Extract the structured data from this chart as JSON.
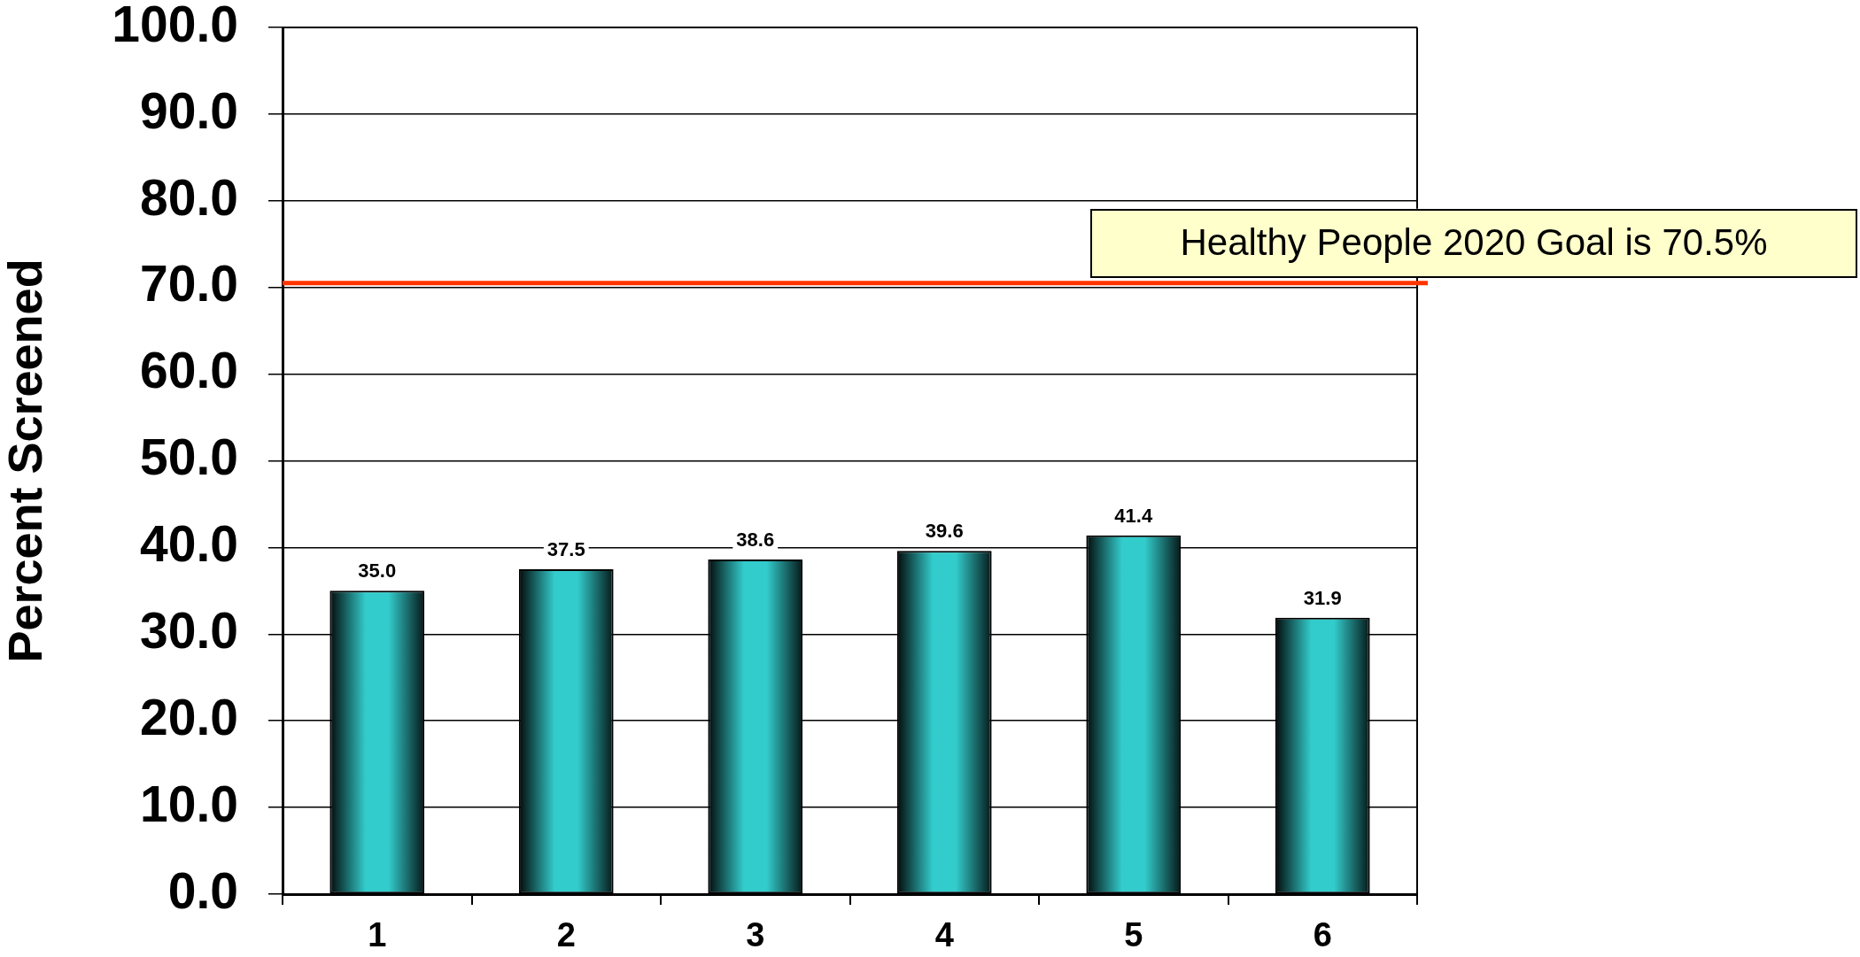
{
  "chart_data": {
    "type": "bar",
    "ylabel": "Percent Screened",
    "categories": [
      "1",
      "2",
      "3",
      "4",
      "5",
      "6"
    ],
    "values": [
      35.0,
      37.5,
      38.6,
      39.6,
      41.4,
      31.9
    ],
    "value_labels": [
      "35.0",
      "37.5",
      "38.6",
      "39.6",
      "41.4",
      "31.9"
    ],
    "color": "#33cccc",
    "ylim": [
      0,
      100
    ],
    "yticks": [
      {
        "value": 0,
        "label": "0.0"
      },
      {
        "value": 10,
        "label": "10.0"
      },
      {
        "value": 20,
        "label": "20.0"
      },
      {
        "value": 30,
        "label": "30.0"
      },
      {
        "value": 40,
        "label": "40.0"
      },
      {
        "value": 50,
        "label": "50.0"
      },
      {
        "value": 60,
        "label": "60.0"
      },
      {
        "value": 70,
        "label": "70.0"
      },
      {
        "value": 80,
        "label": "80.0"
      },
      {
        "value": 90,
        "label": "90.0"
      },
      {
        "value": 100,
        "label": "100.0"
      }
    ],
    "grid": "y",
    "ref_lines": [
      {
        "axis": "y",
        "value": 70.5,
        "label": "Healthy People 2020 Goal is 70.5%",
        "color": "#ff3300"
      }
    ]
  }
}
